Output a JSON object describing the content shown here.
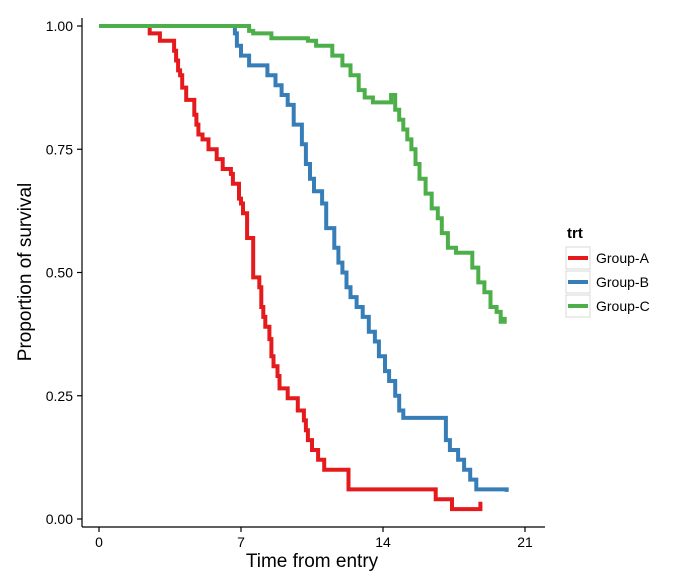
{
  "chart_data": {
    "type": "line",
    "step": true,
    "xlabel": "Time from entry",
    "ylabel": "Proportion of survival",
    "xlim": [
      0,
      21
    ],
    "ylim": [
      0,
      1
    ],
    "xticks": [
      0,
      7,
      14,
      21
    ],
    "yticks": [
      0,
      0.25,
      0.5,
      0.75,
      1
    ],
    "xtick_labels": [
      "0",
      "7",
      "14",
      "21"
    ],
    "ytick_labels": [
      "0.00",
      "0.25",
      "0.50",
      "0.75",
      "1.00"
    ],
    "grid": false,
    "legend": {
      "title": "trt",
      "placement": "right",
      "entries": [
        "Group-A",
        "Group-B",
        "Group-C"
      ]
    },
    "series": [
      {
        "name": "Group-A",
        "color": "#e41a1c",
        "x": [
          0,
          2.5,
          3.0,
          3.7,
          3.8,
          3.9,
          4.0,
          4.1,
          4.3,
          4.7,
          4.8,
          4.9,
          5.1,
          5.4,
          5.8,
          6.1,
          6.5,
          6.6,
          6.9,
          7.0,
          7.1,
          7.3,
          7.6,
          7.9,
          8.0,
          8.1,
          8.2,
          8.4,
          8.5,
          8.6,
          8.8,
          8.9,
          9.3,
          9.8,
          10.1,
          10.2,
          10.3,
          10.5,
          10.8,
          11.1,
          11.3,
          11.5,
          11.9,
          12.3,
          14.0,
          16.6,
          17.4,
          18.6,
          18.8
        ],
        "y": [
          1.0,
          0.985,
          0.97,
          0.95,
          0.93,
          0.91,
          0.9,
          0.875,
          0.85,
          0.82,
          0.8,
          0.78,
          0.77,
          0.75,
          0.73,
          0.71,
          0.7,
          0.68,
          0.65,
          0.64,
          0.62,
          0.57,
          0.49,
          0.47,
          0.43,
          0.41,
          0.39,
          0.365,
          0.33,
          0.31,
          0.29,
          0.265,
          0.245,
          0.22,
          0.2,
          0.18,
          0.16,
          0.14,
          0.12,
          0.1,
          0.1,
          0.1,
          0.1,
          0.06,
          0.06,
          0.04,
          0.02,
          0.02,
          0.035
        ]
      },
      {
        "name": "Group-B",
        "color": "#377eb8",
        "x": [
          0,
          6.7,
          6.8,
          7.0,
          7.4,
          7.7,
          8.3,
          8.7,
          9.0,
          9.3,
          9.6,
          10.0,
          10.2,
          10.4,
          10.6,
          10.8,
          11.0,
          11.2,
          11.6,
          11.8,
          12.0,
          12.2,
          12.4,
          12.7,
          13.0,
          13.3,
          13.6,
          13.8,
          14.1,
          14.3,
          14.6,
          14.8,
          15.0,
          15.4,
          15.6,
          17.1,
          17.3,
          17.7,
          18.0,
          18.3,
          18.6,
          19.1,
          19.3,
          19.5,
          19.8,
          20.1
        ],
        "y": [
          1.0,
          0.985,
          0.96,
          0.94,
          0.92,
          0.92,
          0.9,
          0.88,
          0.86,
          0.84,
          0.8,
          0.76,
          0.72,
          0.69,
          0.665,
          0.665,
          0.64,
          0.59,
          0.55,
          0.52,
          0.5,
          0.47,
          0.45,
          0.43,
          0.41,
          0.38,
          0.36,
          0.33,
          0.3,
          0.28,
          0.25,
          0.22,
          0.205,
          0.205,
          0.205,
          0.16,
          0.14,
          0.12,
          0.1,
          0.08,
          0.06,
          0.06,
          0.06,
          0.06,
          0.06,
          0.055
        ]
      },
      {
        "name": "Group-C",
        "color": "#4daf4a",
        "x": [
          0,
          7.4,
          7.6,
          8.5,
          10.3,
          10.7,
          11.5,
          12.0,
          12.4,
          12.8,
          13.1,
          13.5,
          13.9,
          14.4,
          14.6,
          14.8,
          15.0,
          15.2,
          15.4,
          15.6,
          15.8,
          16.1,
          16.4,
          16.7,
          16.9,
          17.2,
          17.4,
          17.6,
          18.1,
          18.4,
          18.7,
          19.0,
          19.3,
          19.6,
          19.8,
          20.0
        ],
        "y": [
          1.0,
          0.99,
          0.985,
          0.975,
          0.97,
          0.96,
          0.94,
          0.92,
          0.9,
          0.87,
          0.855,
          0.845,
          0.845,
          0.86,
          0.83,
          0.81,
          0.79,
          0.77,
          0.75,
          0.72,
          0.69,
          0.66,
          0.63,
          0.61,
          0.58,
          0.55,
          0.55,
          0.54,
          0.54,
          0.51,
          0.48,
          0.46,
          0.43,
          0.42,
          0.4,
          0.41
        ]
      }
    ]
  }
}
